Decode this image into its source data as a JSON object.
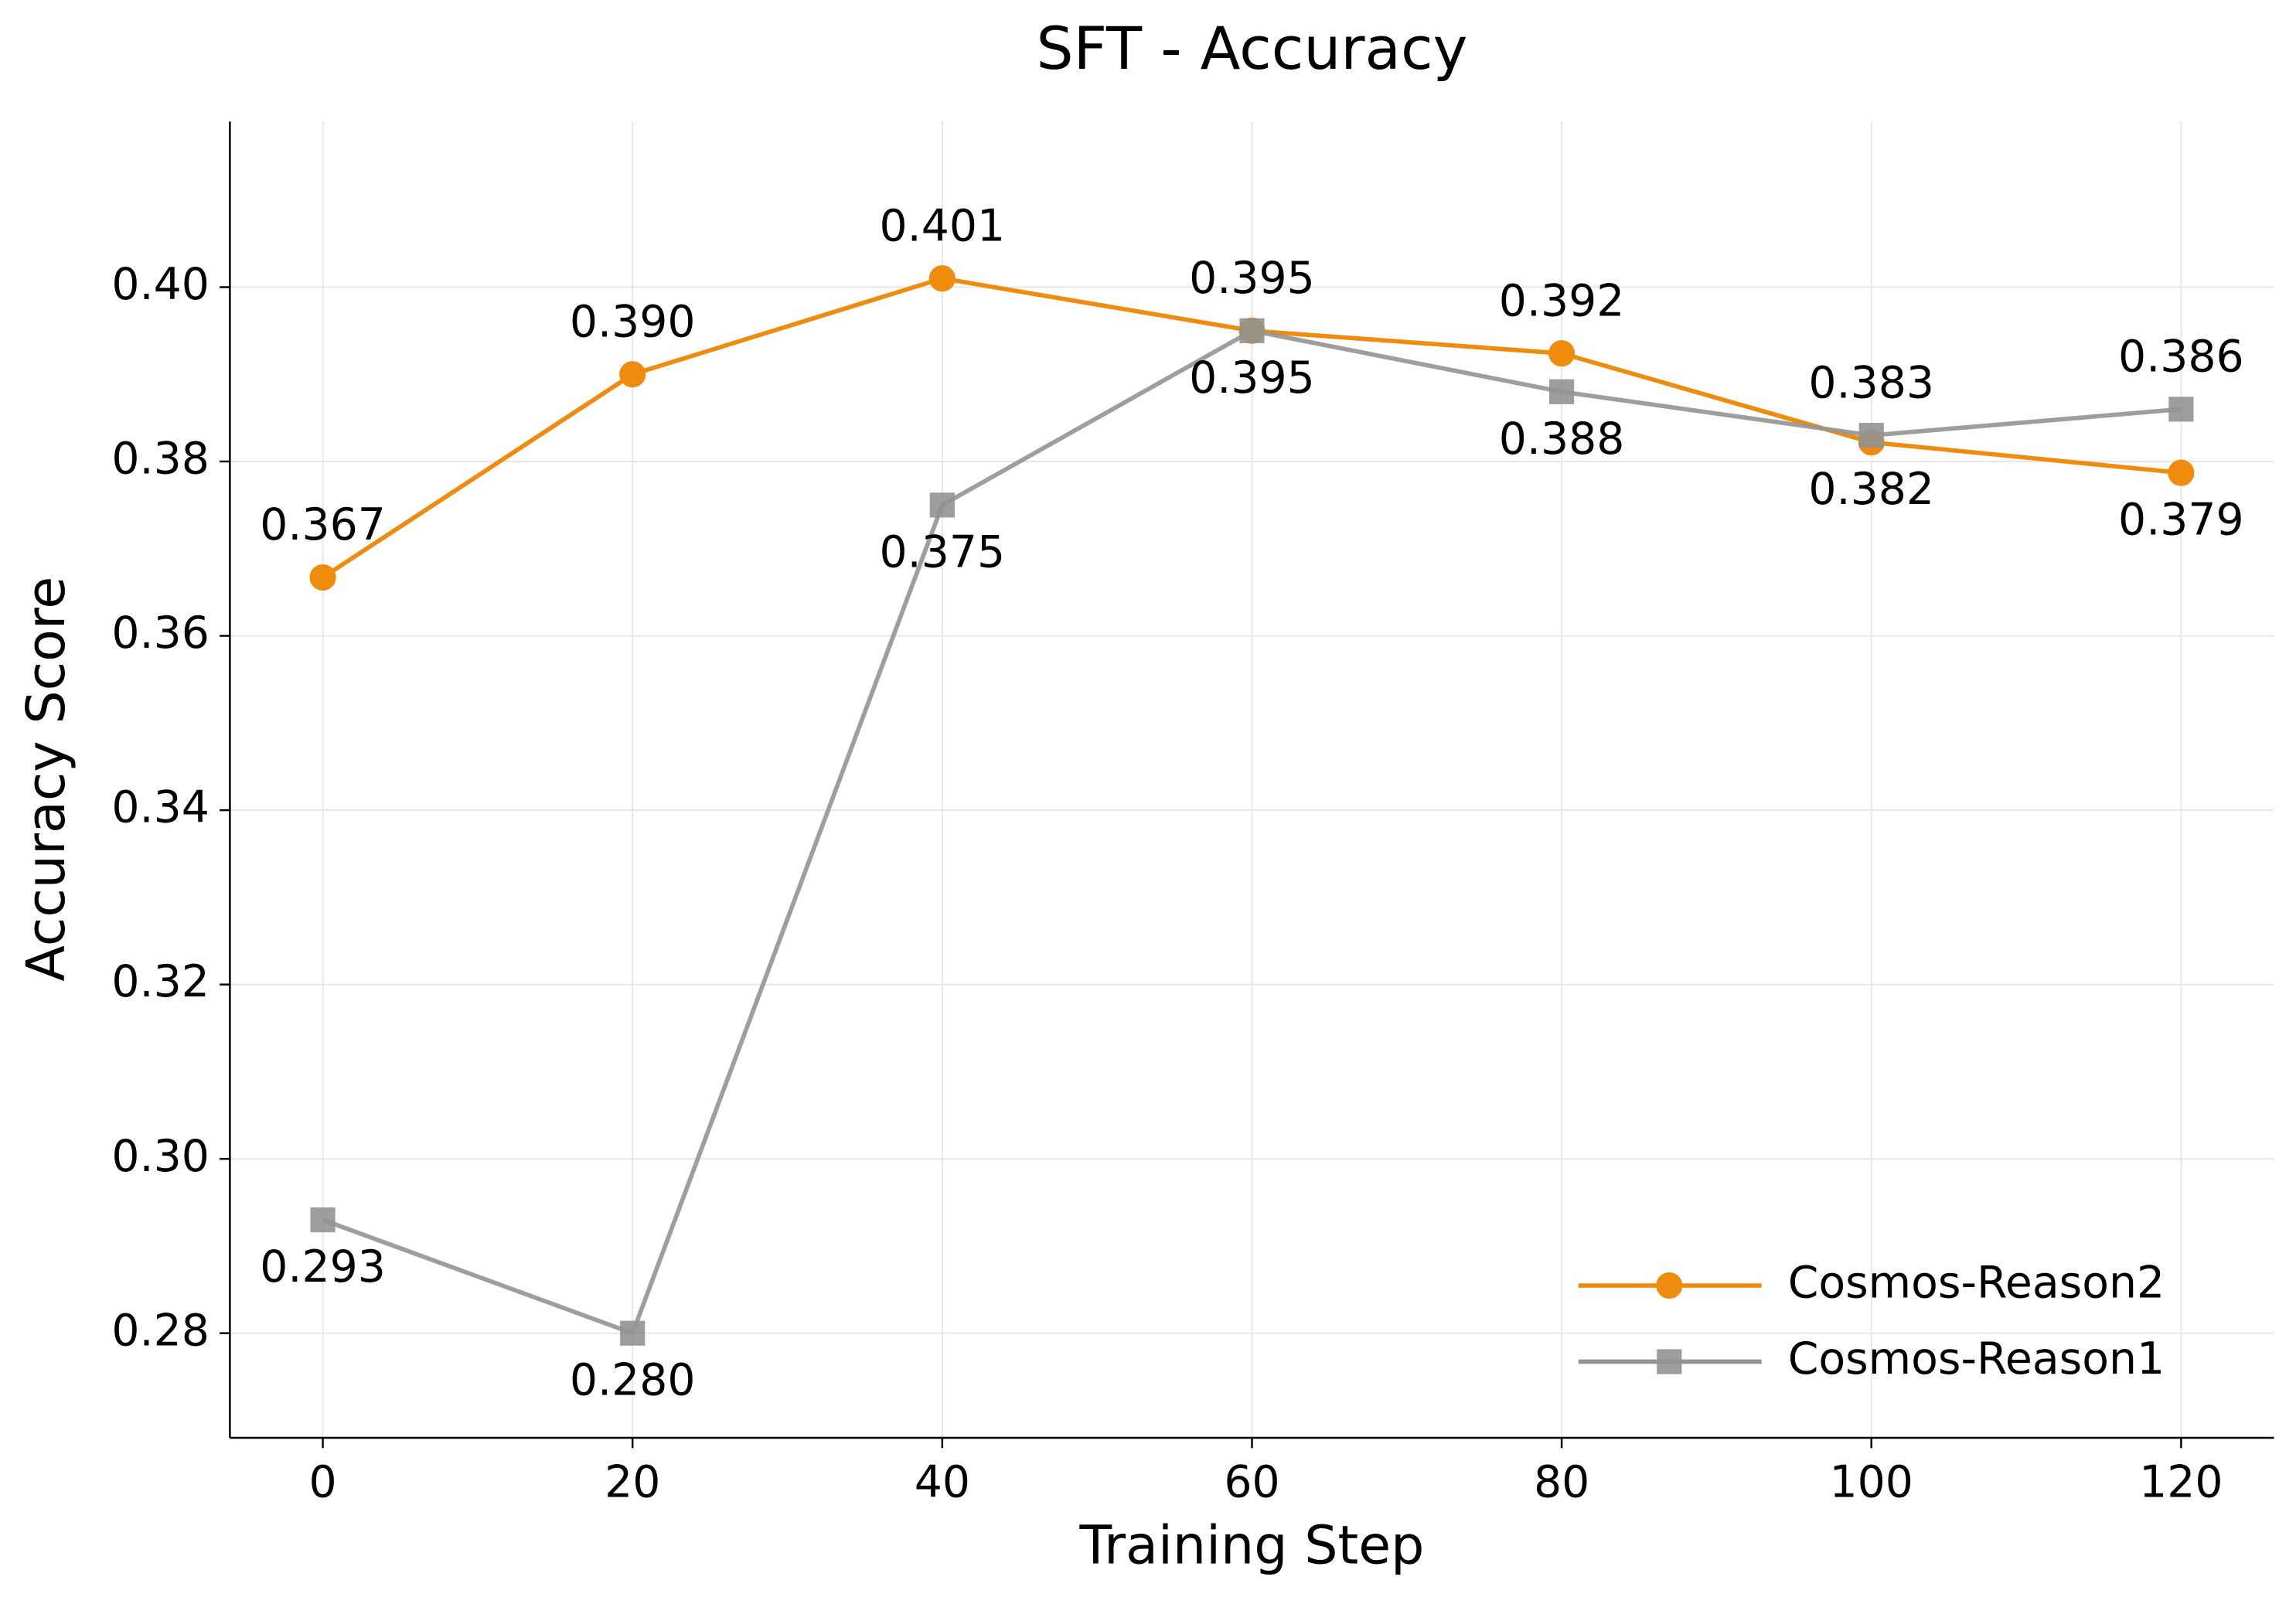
{
  "chart_data": {
    "type": "line",
    "title": "SFT - Accuracy",
    "x_label": "Training Step",
    "y_label": "Accuracy Score",
    "x": [
      0,
      20,
      40,
      60,
      80,
      100,
      120
    ],
    "series": [
      {
        "name": "Cosmos-Reason2",
        "color": "#ef8c0e",
        "marker": "circle",
        "values": [
          0.3667,
          0.39,
          0.401,
          0.395,
          0.3924,
          0.3822,
          0.3787
        ],
        "value_labels": [
          "0.367",
          "0.390",
          "0.401",
          "0.395",
          "0.392",
          "0.382",
          "0.379"
        ]
      },
      {
        "name": "Cosmos-Reason1",
        "color": "#939393",
        "marker": "square",
        "values": [
          0.293,
          0.28,
          0.375,
          0.395,
          0.388,
          0.383,
          0.386
        ],
        "value_labels": [
          "0.293",
          "0.280",
          "0.375",
          "0.395",
          "0.388",
          "0.383",
          "0.386"
        ]
      }
    ],
    "xlim": [
      -6,
      126
    ],
    "xticks": [
      0,
      20,
      40,
      60,
      80,
      100,
      120
    ],
    "ylim": [
      0.268,
      0.419
    ],
    "yticks": [
      0.28,
      {
        "value": 0.3,
        "label": "0.30"
      },
      0.32,
      0.34,
      0.36,
      0.38,
      {
        "value": 0.4,
        "label": "0.40"
      }
    ],
    "grid": true,
    "legend": "lower right"
  }
}
